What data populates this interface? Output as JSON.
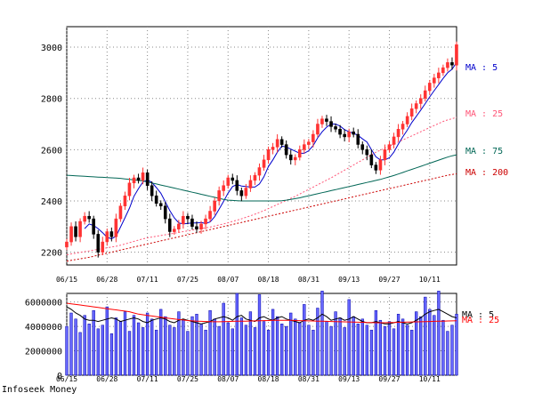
{
  "footer": "Infoseek Money",
  "chart_data": [
    {
      "type": "candlestick",
      "panel": "price",
      "ylim": [
        2150,
        3080
      ],
      "yticks": [
        2200,
        2400,
        2600,
        2800,
        3000
      ],
      "xtick_labels": [
        "06/15",
        "06/28",
        "07/11",
        "07/25",
        "08/07",
        "08/18",
        "08/31",
        "09/13",
        "09/27",
        "10/11"
      ],
      "xtick_index": [
        0,
        9,
        18,
        27,
        36,
        45,
        54,
        63,
        72,
        81
      ],
      "grid": true,
      "close": [
        2240,
        2300,
        2260,
        2320,
        2340,
        2330,
        2270,
        2200,
        2240,
        2280,
        2260,
        2330,
        2380,
        2420,
        2470,
        2490,
        2480,
        2510,
        2460,
        2420,
        2390,
        2380,
        2330,
        2280,
        2290,
        2310,
        2340,
        2330,
        2300,
        2290,
        2310,
        2330,
        2360,
        2400,
        2440,
        2460,
        2490,
        2480,
        2440,
        2420,
        2450,
        2480,
        2500,
        2530,
        2560,
        2600,
        2610,
        2640,
        2620,
        2580,
        2560,
        2570,
        2600,
        2620,
        2630,
        2660,
        2700,
        2720,
        2710,
        2690,
        2680,
        2660,
        2650,
        2670,
        2660,
        2620,
        2600,
        2580,
        2540,
        2520,
        2560,
        2600,
        2620,
        2650,
        2680,
        2700,
        2730,
        2760,
        2780,
        2800,
        2830,
        2860,
        2880,
        2900,
        2920,
        2940,
        2930,
        3010
      ],
      "series": [
        {
          "name": "MA : 5",
          "values": [
            null,
            null,
            null,
            null,
            2292,
            2310,
            2304,
            2292,
            2276,
            2258,
            2252,
            2262,
            2298,
            2334,
            2372,
            2418,
            2448,
            2474,
            2482,
            2472,
            2452,
            2430,
            2396,
            2362,
            2334,
            2314,
            2310,
            2312,
            2314,
            2314,
            2316,
            2312,
            2318,
            2338,
            2368,
            2398,
            2430,
            2456,
            2464,
            2458,
            2456,
            2454,
            2454,
            2466,
            2494,
            2534,
            2560,
            2590,
            2614,
            2610,
            2602,
            2594,
            2586,
            2586,
            2596,
            2616,
            2646,
            2670,
            2688,
            2700,
            2700,
            2692,
            2678,
            2670,
            2664,
            2656,
            2642,
            2630,
            2600,
            2572,
            2560,
            2560,
            2568,
            2590,
            2622,
            2650,
            2676,
            2706,
            2730,
            2754,
            2780,
            2806,
            2830,
            2854,
            2878,
            2900,
            2914,
            2940
          ]
        },
        {
          "name": "MA : 25",
          "values": [
            2190,
            2193,
            2196,
            2199,
            2202,
            2205,
            2208,
            2211,
            2214,
            2217,
            2220,
            2223,
            2227,
            2232,
            2237,
            2242,
            2247,
            2252,
            2256,
            2259,
            2262,
            2265,
            2268,
            2271,
            2274,
            2277,
            2280,
            2283,
            2286,
            2289,
            2292,
            2295,
            2298,
            2302,
            2306,
            2310,
            2315,
            2320,
            2325,
            2330,
            2336,
            2342,
            2348,
            2355,
            2362,
            2370,
            2378,
            2386,
            2394,
            2402,
            2410,
            2418,
            2427,
            2436,
            2445,
            2454,
            2463,
            2472,
            2481,
            2490,
            2500,
            2510,
            2520,
            2530,
            2540,
            2550,
            2560,
            2570,
            2580,
            2590,
            2598,
            2606,
            2614,
            2622,
            2630,
            2638,
            2646,
            2654,
            2662,
            2670,
            2678,
            2686,
            2694,
            2702,
            2710,
            2716,
            2721,
            2726
          ]
        },
        {
          "name": "MA : 75",
          "values": [
            2500,
            2499,
            2498,
            2497,
            2496,
            2495,
            2494,
            2493,
            2492,
            2491,
            2490,
            2489,
            2488,
            2486,
            2484,
            2482,
            2480,
            2478,
            2474,
            2470,
            2466,
            2462,
            2458,
            2454,
            2450,
            2446,
            2442,
            2438,
            2434,
            2430,
            2426,
            2422,
            2418,
            2414,
            2410,
            2406,
            2403,
            2402,
            2401,
            2400,
            2400,
            2400,
            2400,
            2400,
            2400,
            2400,
            2400,
            2400,
            2401,
            2403,
            2406,
            2409,
            2412,
            2416,
            2420,
            2424,
            2428,
            2432,
            2436,
            2440,
            2444,
            2448,
            2452,
            2456,
            2460,
            2464,
            2468,
            2472,
            2476,
            2480,
            2484,
            2489,
            2494,
            2499,
            2505,
            2511,
            2517,
            2523,
            2529,
            2535,
            2541,
            2547,
            2553,
            2559,
            2565,
            2571,
            2576,
            2580
          ]
        },
        {
          "name": "MA : 200",
          "values": [
            2165,
            2168,
            2171,
            2174,
            2177,
            2180,
            2184,
            2188,
            2192,
            2196,
            2200,
            2204,
            2208,
            2212,
            2216,
            2220,
            2224,
            2228,
            2232,
            2236,
            2240,
            2244,
            2248,
            2252,
            2256,
            2260,
            2264,
            2268,
            2272,
            2276,
            2280,
            2284,
            2288,
            2292,
            2296,
            2300,
            2304,
            2308,
            2312,
            2316,
            2320,
            2324,
            2328,
            2332,
            2336,
            2340,
            2344,
            2348,
            2352,
            2356,
            2360,
            2364,
            2368,
            2372,
            2376,
            2380,
            2384,
            2388,
            2392,
            2396,
            2400,
            2404,
            2408,
            2412,
            2416,
            2420,
            2424,
            2428,
            2432,
            2436,
            2440,
            2444,
            2448,
            2452,
            2456,
            2460,
            2464,
            2468,
            2472,
            2476,
            2480,
            2484,
            2488,
            2492,
            2496,
            2500,
            2503,
            2506
          ]
        }
      ],
      "ma_labels": [
        "MA : 5",
        "MA : 25",
        "MA : 75",
        "MA : 200"
      ]
    },
    {
      "type": "bar",
      "panel": "volume",
      "ylim": [
        0,
        6700000
      ],
      "yticks": [
        0,
        2000000,
        4000000,
        6000000
      ],
      "ytick_labels": [
        "0",
        "2000000",
        "4000000",
        "6000000"
      ],
      "xtick_labels": [
        "06/15",
        "06/28",
        "07/11",
        "07/25",
        "08/07",
        "08/18",
        "08/31",
        "09/13",
        "09/27",
        "10/11"
      ],
      "xtick_index": [
        0,
        9,
        18,
        27,
        36,
        45,
        54,
        63,
        72,
        81
      ],
      "grid": true,
      "values": [
        4000000,
        5100000,
        4600000,
        3500000,
        4900000,
        4200000,
        5300000,
        3800000,
        4100000,
        5600000,
        3400000,
        4700000,
        4400000,
        5200000,
        3600000,
        4900000,
        4300000,
        3900000,
        5100000,
        4600000,
        3700000,
        5400000,
        4800000,
        4100000,
        3900000,
        5200000,
        4500000,
        3600000,
        4800000,
        5000000,
        4200000,
        3700000,
        5300000,
        4600000,
        4000000,
        5900000,
        4300000,
        3800000,
        6700000,
        4700000,
        4100000,
        5200000,
        3900000,
        6600000,
        4400000,
        3700000,
        5400000,
        4800000,
        4200000,
        4000000,
        5100000,
        4600000,
        4300000,
        5800000,
        4100000,
        3700000,
        5500000,
        6900000,
        4400000,
        4000000,
        5200000,
        4700000,
        3900000,
        6200000,
        4800000,
        4200000,
        4600000,
        4100000,
        3700000,
        5300000,
        4500000,
        4000000,
        4400000,
        3800000,
        5000000,
        4600000,
        4100000,
        3700000,
        5200000,
        4800000,
        6400000,
        5400000,
        4900000,
        6900000,
        4500000,
        3600000,
        4100000,
        5000000
      ],
      "series": [
        {
          "name": "MA : 5",
          "values": [
            5600000,
            5400000,
            5100000,
            4900000,
            4600000,
            4500000,
            4500000,
            4400000,
            4500000,
            4600000,
            4700000,
            4600000,
            4400000,
            4500000,
            4600000,
            4700000,
            4600000,
            4400000,
            4300000,
            4500000,
            4600000,
            4700000,
            4600000,
            4400000,
            4300000,
            4500000,
            4600000,
            4500000,
            4400000,
            4300000,
            4200000,
            4300000,
            4400000,
            4600000,
            4700000,
            4800000,
            4700000,
            4500000,
            4800000,
            4900000,
            4600000,
            4500000,
            4400000,
            4700000,
            4800000,
            4600000,
            4500000,
            4700000,
            4800000,
            4600000,
            4500000,
            4400000,
            4300000,
            4500000,
            4600000,
            4500000,
            4700000,
            5000000,
            4800000,
            4500000,
            4600000,
            4700000,
            4500000,
            4600000,
            4800000,
            4600000,
            4400000,
            4300000,
            4300000,
            4400000,
            4300000,
            4200000,
            4200000,
            4300000,
            4400000,
            4300000,
            4200000,
            4300000,
            4500000,
            4700000,
            5000000,
            5200000,
            5300000,
            5400000,
            5200000,
            5000000,
            4800000,
            4700000
          ]
        },
        {
          "name": "MA : 25",
          "values": [
            5900000,
            5850000,
            5800000,
            5750000,
            5700000,
            5650000,
            5600000,
            5550000,
            5500000,
            5450000,
            5400000,
            5350000,
            5300000,
            5250000,
            5200000,
            5100000,
            5000000,
            4950000,
            4900000,
            4850000,
            4800000,
            4750000,
            4700000,
            4650000,
            4600000,
            4560000,
            4520000,
            4480000,
            4450000,
            4430000,
            4410000,
            4400000,
            4390000,
            4380000,
            4380000,
            4390000,
            4400000,
            4410000,
            4420000,
            4430000,
            4430000,
            4440000,
            4450000,
            4460000,
            4470000,
            4480000,
            4490000,
            4500000,
            4500000,
            4500000,
            4490000,
            4480000,
            4470000,
            4460000,
            4450000,
            4440000,
            4430000,
            4420000,
            4410000,
            4400000,
            4390000,
            4380000,
            4370000,
            4360000,
            4350000,
            4340000,
            4330000,
            4320000,
            4310000,
            4300000,
            4300000,
            4300000,
            4310000,
            4320000,
            4330000,
            4340000,
            4350000,
            4360000,
            4370000,
            4380000,
            4390000,
            4400000,
            4410000,
            4420000,
            4430000,
            4440000,
            4450000,
            4460000
          ]
        }
      ],
      "ma_labels": [
        "MA : 5",
        "MA : 25"
      ]
    }
  ],
  "colors": {
    "up": "#ff3333",
    "down": "#000000",
    "ma5": "#0000cc",
    "ma25": "#ff5577",
    "ma75": "#006655",
    "ma200": "#cc0000",
    "volume_bar": "#6666ff",
    "volume_bar_edge": "#0000aa",
    "vol_ma5": "#000000",
    "vol_ma25": "#ff0000"
  }
}
